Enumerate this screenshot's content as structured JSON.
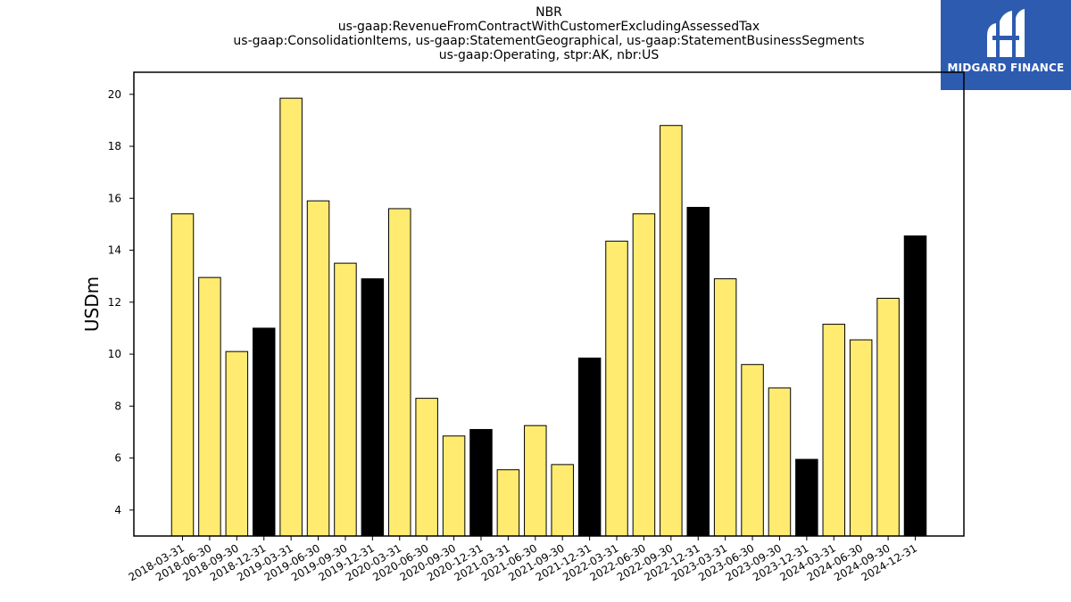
{
  "brand": {
    "name": "MIDGARD FINANCE",
    "logo_icon": "midgard-m-logo-icon",
    "color": "#2d5bb0"
  },
  "chart_data": {
    "type": "bar",
    "title": "NBR",
    "subtitle_lines": [
      "us-gaap:RevenueFromContractWithCustomerExcludingAssessedTax",
      "us-gaap:ConsolidationItems, us-gaap:StatementGeographical, us-gaap:StatementBusinessSegments",
      "us-gaap:Operating, stpr:AK, nbr:US"
    ],
    "ylabel": "USDm",
    "xlabel": "",
    "ylim": [
      3,
      20.85
    ],
    "yticks": [
      4,
      6,
      8,
      10,
      12,
      14,
      16,
      18,
      20
    ],
    "grid": false,
    "legend": "none",
    "colors": {
      "quarter": "#ffeb70",
      "year_end": "#000000",
      "edge": "#000000"
    },
    "categories": [
      "2018-03-31",
      "2018-06-30",
      "2018-09-30",
      "2018-12-31",
      "2019-03-31",
      "2019-06-30",
      "2019-09-30",
      "2019-12-31",
      "2020-03-31",
      "2020-06-30",
      "2020-09-30",
      "2020-12-31",
      "2021-03-31",
      "2021-06-30",
      "2021-09-30",
      "2021-12-31",
      "2022-03-31",
      "2022-06-30",
      "2022-09-30",
      "2022-12-31",
      "2023-03-31",
      "2023-06-30",
      "2023-09-30",
      "2023-12-31",
      "2024-03-31",
      "2024-06-30",
      "2024-09-30",
      "2024-12-31"
    ],
    "values": [
      15.4,
      12.95,
      10.1,
      11.0,
      19.85,
      15.9,
      13.5,
      12.9,
      15.6,
      8.3,
      6.85,
      7.1,
      5.55,
      7.25,
      5.75,
      9.85,
      14.35,
      15.4,
      18.8,
      15.65,
      12.9,
      9.6,
      8.7,
      5.95,
      11.15,
      10.55,
      12.15,
      14.55
    ]
  }
}
